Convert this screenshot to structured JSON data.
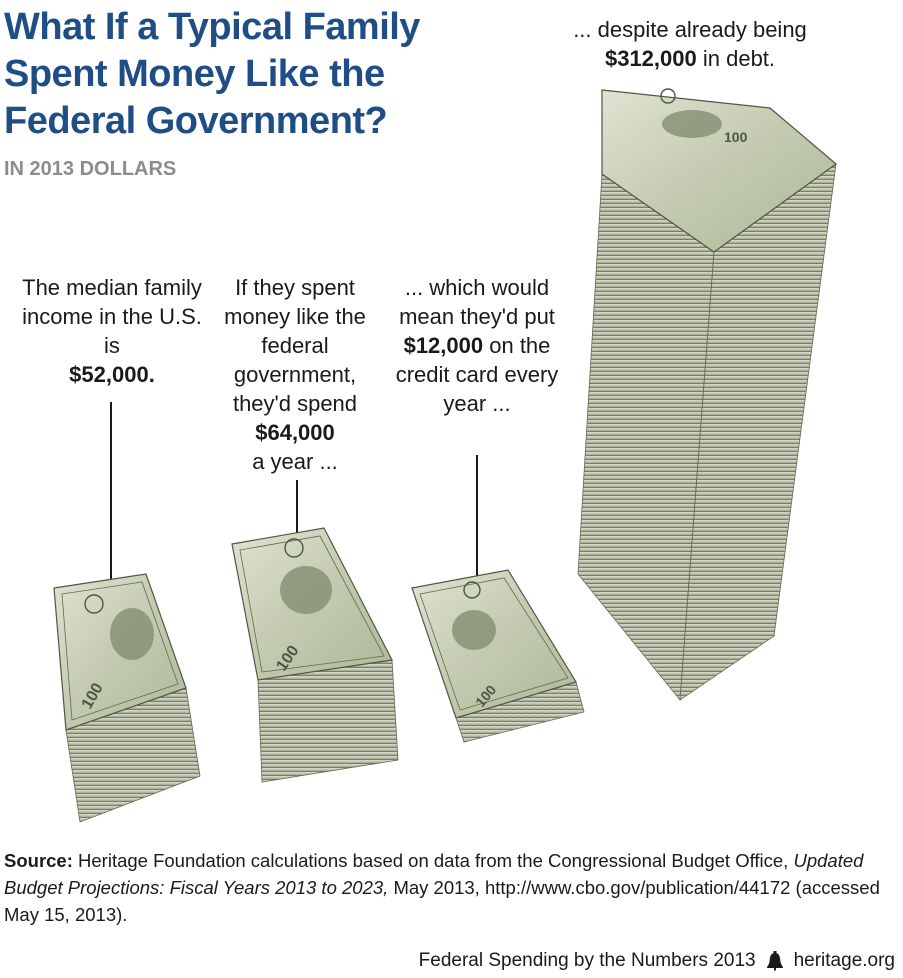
{
  "title": "What If a Typical Family Spent Money Like the Federal Government?",
  "subtitle": "IN 2013 DOLLARS",
  "columns": [
    {
      "pre": "The median family income in the U.S. is",
      "amount": "$52,000.",
      "post": ""
    },
    {
      "pre": "If they spent money like the federal government, they'd spend",
      "amount": "$64,000",
      "post": "a year ..."
    },
    {
      "pre": "... which would mean they'd put",
      "amount": "$12,000",
      "post": "on the credit card every year ..."
    },
    {
      "pre": "... despite already being",
      "amount": "$312,000",
      "post": "in debt."
    }
  ],
  "source": {
    "label": "Source:",
    "text": "Heritage Foundation calculations based on data from the Congressional Budget Office,",
    "publication": "Updated Budget Projections: Fiscal Years 2013 to 2023,",
    "rest": "May 2013, http://www.cbo.gov/publication/44172 (accessed May 15, 2013)."
  },
  "footer": {
    "series": "Federal Spending by the Numbers 2013",
    "logo_icon": "liberty-bell-icon",
    "site": "heritage.org"
  },
  "colors": {
    "title": "#1f4e86",
    "subtitle": "#8c8c8c",
    "bill_green": "#a9b593",
    "bill_dark": "#5e6b4f"
  }
}
